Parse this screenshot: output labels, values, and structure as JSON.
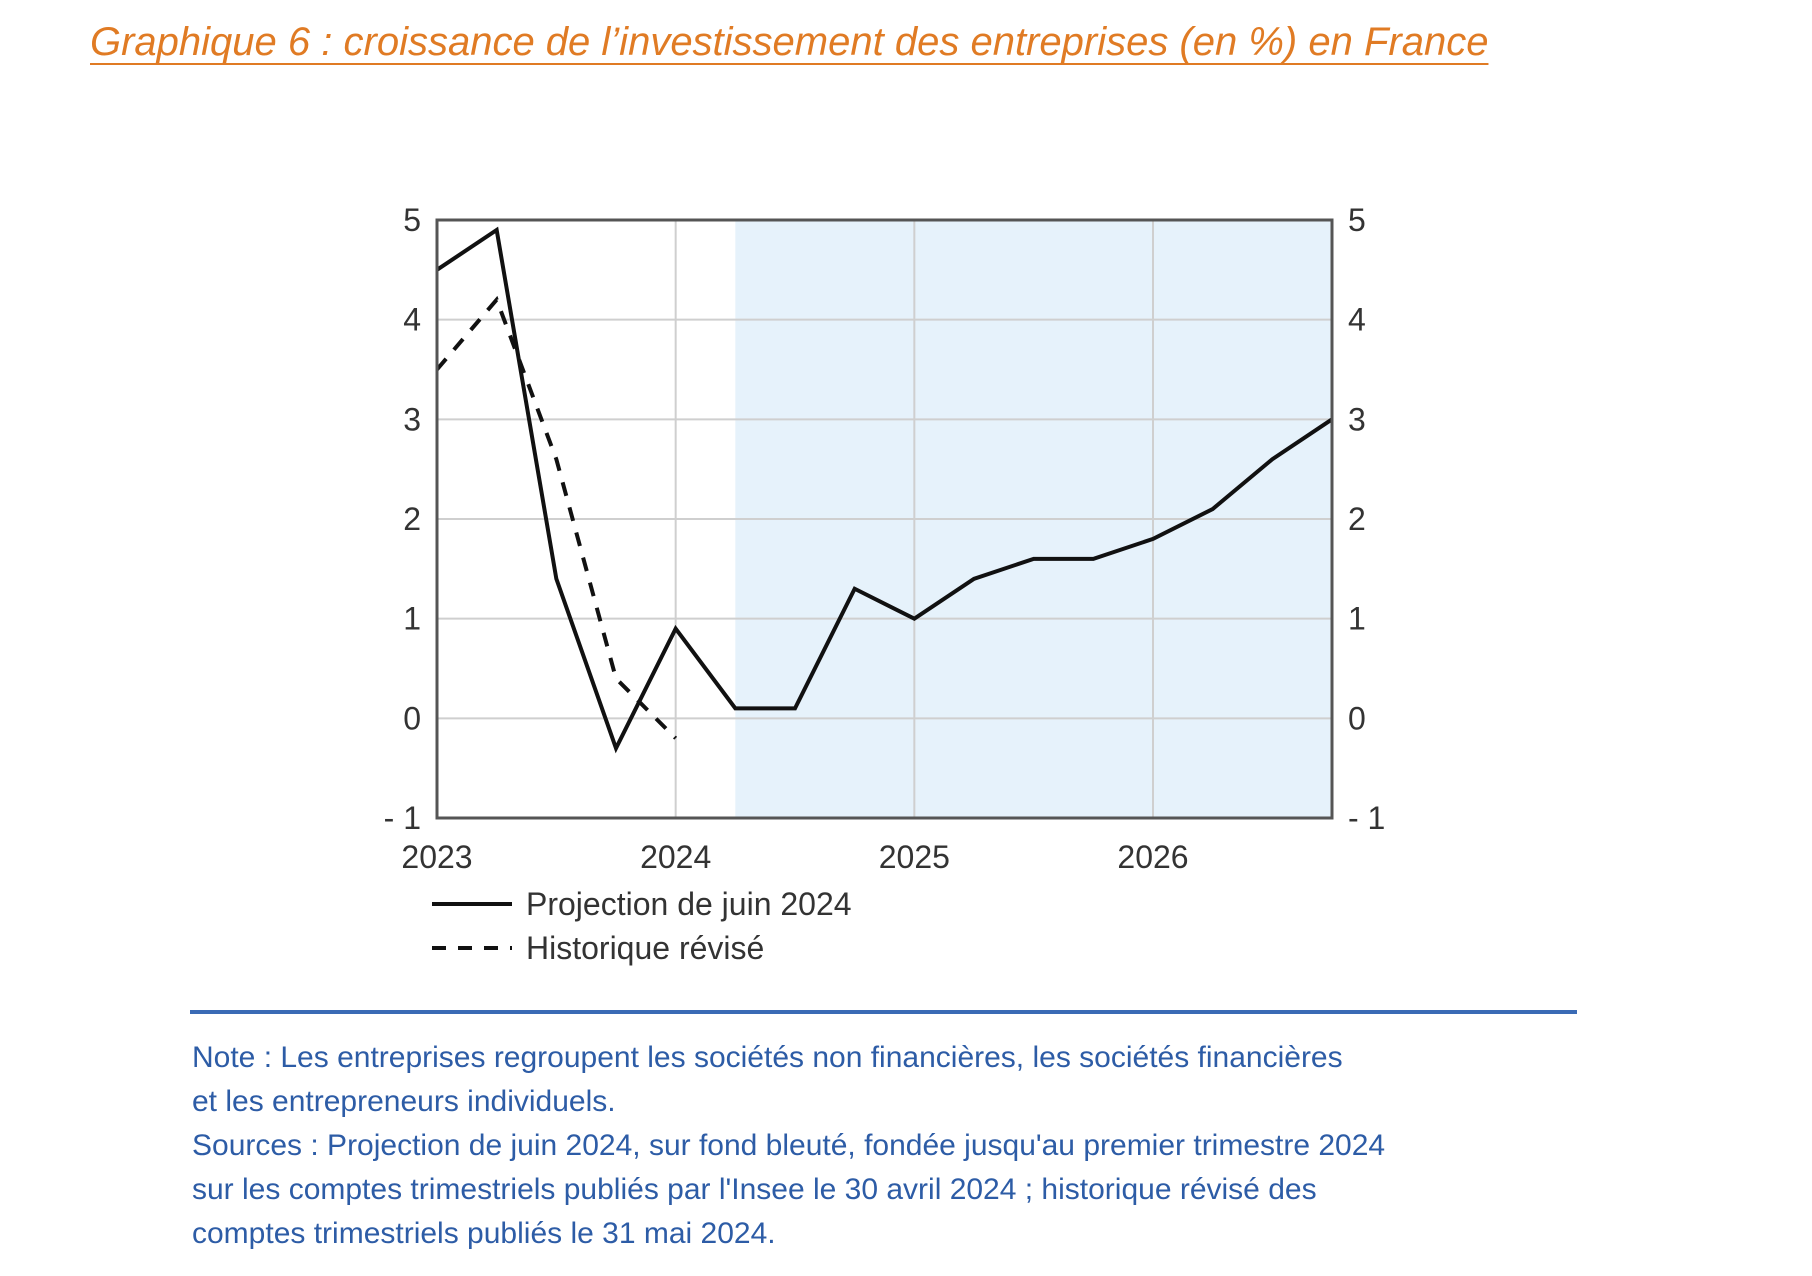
{
  "title": "Graphique 6 : croissance de l’investissement des entreprises (en %) en France",
  "chart_data": {
    "type": "line",
    "title": "Graphique 6 : croissance de l’investissement des entreprises (en %) en France",
    "xlabel": "",
    "ylabel": "",
    "x": [
      2023.0,
      2023.25,
      2023.5,
      2023.75,
      2024.0,
      2024.25,
      2024.5,
      2024.75,
      2025.0,
      2025.25,
      2025.5,
      2025.75,
      2026.0,
      2026.25,
      2026.5,
      2026.75
    ],
    "x_ticks": [
      2023,
      2024,
      2025,
      2026
    ],
    "x_tick_labels": [
      "2023",
      "2024",
      "2025",
      "2026"
    ],
    "xlim": [
      2023.0,
      2026.75
    ],
    "ylim": [
      -1,
      5
    ],
    "y_ticks": [
      -1,
      0,
      1,
      2,
      3,
      4,
      5
    ],
    "y_tick_labels": [
      "- 1",
      "0",
      "1",
      "2",
      "3",
      "4",
      "5"
    ],
    "projection_shaded_from": 2024.25,
    "projection_shade_color": "#E6F2FB",
    "grid": true,
    "legend_position": "below",
    "series": [
      {
        "name": "Projection de juin 2024",
        "style": "solid",
        "color": "#111111",
        "x": [
          2023.0,
          2023.25,
          2023.5,
          2023.75,
          2024.0,
          2024.25,
          2024.5,
          2024.75,
          2025.0,
          2025.25,
          2025.5,
          2025.75,
          2026.0,
          2026.25,
          2026.5,
          2026.75
        ],
        "values": [
          4.5,
          4.9,
          1.4,
          -0.3,
          0.9,
          0.1,
          0.1,
          1.3,
          1.0,
          1.4,
          1.6,
          1.6,
          1.8,
          2.1,
          2.6,
          3.0
        ]
      },
      {
        "name": "Historique révisé",
        "style": "dashed",
        "color": "#111111",
        "x": [
          2023.0,
          2023.25,
          2023.5,
          2023.75,
          2024.0
        ],
        "values": [
          3.5,
          4.2,
          2.6,
          0.4,
          -0.2
        ]
      }
    ]
  },
  "note": {
    "line1": "Note : Les entreprises regroupent les sociétés non financières, les sociétés financières",
    "line2": "et les entrepreneurs individuels.",
    "line3": "Sources : Projection de juin 2024, sur fond bleuté, fondée jusqu'au premier trimestre 2024",
    "line4": "sur les comptes trimestriels publiés par l'Insee le 30 avril 2024 ; historique révisé des",
    "line5": "comptes trimestriels publiés le 31 mai 2024."
  },
  "colors": {
    "title": "#E07B24",
    "note": "#2D5CA6",
    "rule": "#3A6BB5",
    "grid": "#CFCFCF",
    "frame": "#555555"
  }
}
